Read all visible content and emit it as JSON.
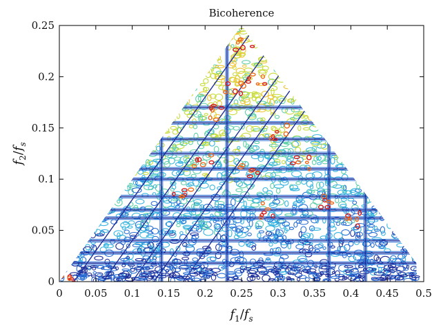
{
  "chart_data": {
    "type": "heatmap",
    "subtype": "contour",
    "title": "Bicoherence",
    "xlabel": "f_1/f_s",
    "ylabel": "f_2/f_s",
    "xlabel_parts": {
      "var": "f",
      "sub": "1",
      "den_var": "f",
      "den_sub": "s"
    },
    "ylabel_parts": {
      "var": "f",
      "sub": "2",
      "den_var": "f",
      "den_sub": "s"
    },
    "xlim": [
      0,
      0.5
    ],
    "ylim": [
      0,
      0.25
    ],
    "x_ticks": [
      "0",
      "0.05",
      "0.1",
      "0.15",
      "0.2",
      "0.25",
      "0.3",
      "0.35",
      "0.4",
      "0.45",
      "0.5"
    ],
    "y_ticks": [
      "0",
      "0.05",
      "0.1",
      "0.15",
      "0.2",
      "0.25"
    ],
    "x_tick_values": [
      0,
      0.05,
      0.1,
      0.15,
      0.2,
      0.25,
      0.3,
      0.35,
      0.4,
      0.45,
      0.5
    ],
    "y_tick_values": [
      0,
      0.05,
      0.1,
      0.15,
      0.2,
      0.25
    ],
    "region": {
      "shape": "triangle",
      "vertices": [
        [
          0,
          0
        ],
        [
          0.25,
          0.25
        ],
        [
          0.49,
          0.018
        ]
      ],
      "bottom_strip_y": [
        0,
        0.018
      ],
      "bottom_strip_x": [
        0.02,
        0.49
      ]
    },
    "grid": false,
    "colormap": [
      "#1f2f9a",
      "#2a6fd6",
      "#39b5e0",
      "#5fd0a8",
      "#c8dc3c",
      "#f2c230",
      "#ee6a1c",
      "#d31c1c"
    ],
    "horizontal_bands_y": [
      0.018,
      0.028,
      0.04,
      0.062,
      0.07,
      0.083,
      0.1,
      0.11,
      0.125,
      0.139,
      0.155,
      0.17
    ],
    "vertical_bands_x": [
      0.14,
      0.23,
      0.37,
      0.42
    ],
    "diagonal_band_offsets": [
      0.02,
      0.06,
      0.1,
      0.13,
      0.17
    ],
    "peak_locations": [
      [
        0.25,
        0.23
      ],
      [
        0.27,
        0.2
      ],
      [
        0.24,
        0.19
      ],
      [
        0.22,
        0.165
      ],
      [
        0.3,
        0.145
      ],
      [
        0.33,
        0.115
      ],
      [
        0.2,
        0.12
      ],
      [
        0.26,
        0.11
      ],
      [
        0.36,
        0.08
      ],
      [
        0.17,
        0.085
      ],
      [
        0.29,
        0.07
      ],
      [
        0.4,
        0.06
      ],
      [
        0.01,
        0.004
      ]
    ]
  }
}
